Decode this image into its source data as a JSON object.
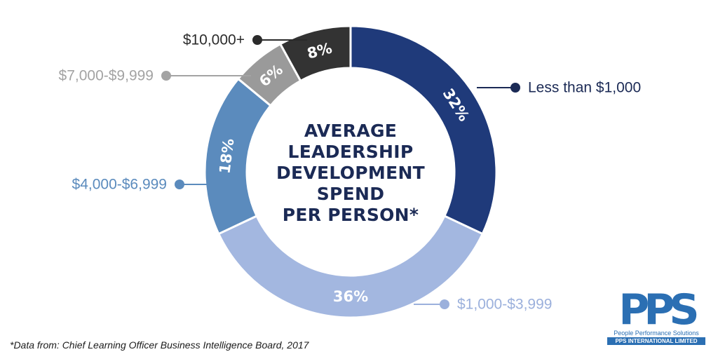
{
  "chart_data": {
    "type": "pie",
    "title": "AVERAGE LEADERSHIP DEVELOPMENT SPEND PER PERSON*",
    "title_lines": [
      "AVERAGE",
      "LEADERSHIP",
      "DEVELOPMENT",
      "SPEND",
      "PER PERSON*"
    ],
    "donut": true,
    "slices": [
      {
        "label": "Less than $1,000",
        "value": 32,
        "value_label": "32%",
        "color": "#1f3a7a",
        "label_color": "#1b2a55"
      },
      {
        "label": "$1,000-$3,999",
        "value": 36,
        "value_label": "36%",
        "color": "#a3b7e0",
        "label_color": "#9bb0dc"
      },
      {
        "label": "$4,000-$6,999",
        "value": 18,
        "value_label": "18%",
        "color": "#5b8bbd",
        "label_color": "#5b8bbd"
      },
      {
        "label": "$7,000-$9,999",
        "value": 6,
        "value_label": "6%",
        "color": "#9a9a9a",
        "label_color": "#a3a3a3"
      },
      {
        "label": "$10,000+",
        "value": 8,
        "value_label": "8%",
        "color": "#333333",
        "label_color": "#2b2b2b"
      }
    ]
  },
  "footnote": "*Data from: Chief Learning Officer Business Intelligence Board, 2017",
  "logo": {
    "mark": "PPS",
    "tagline": "People Performance Solutions",
    "company": "PPS INTERNATIONAL LIMITED",
    "color": "#2b6fb3"
  }
}
